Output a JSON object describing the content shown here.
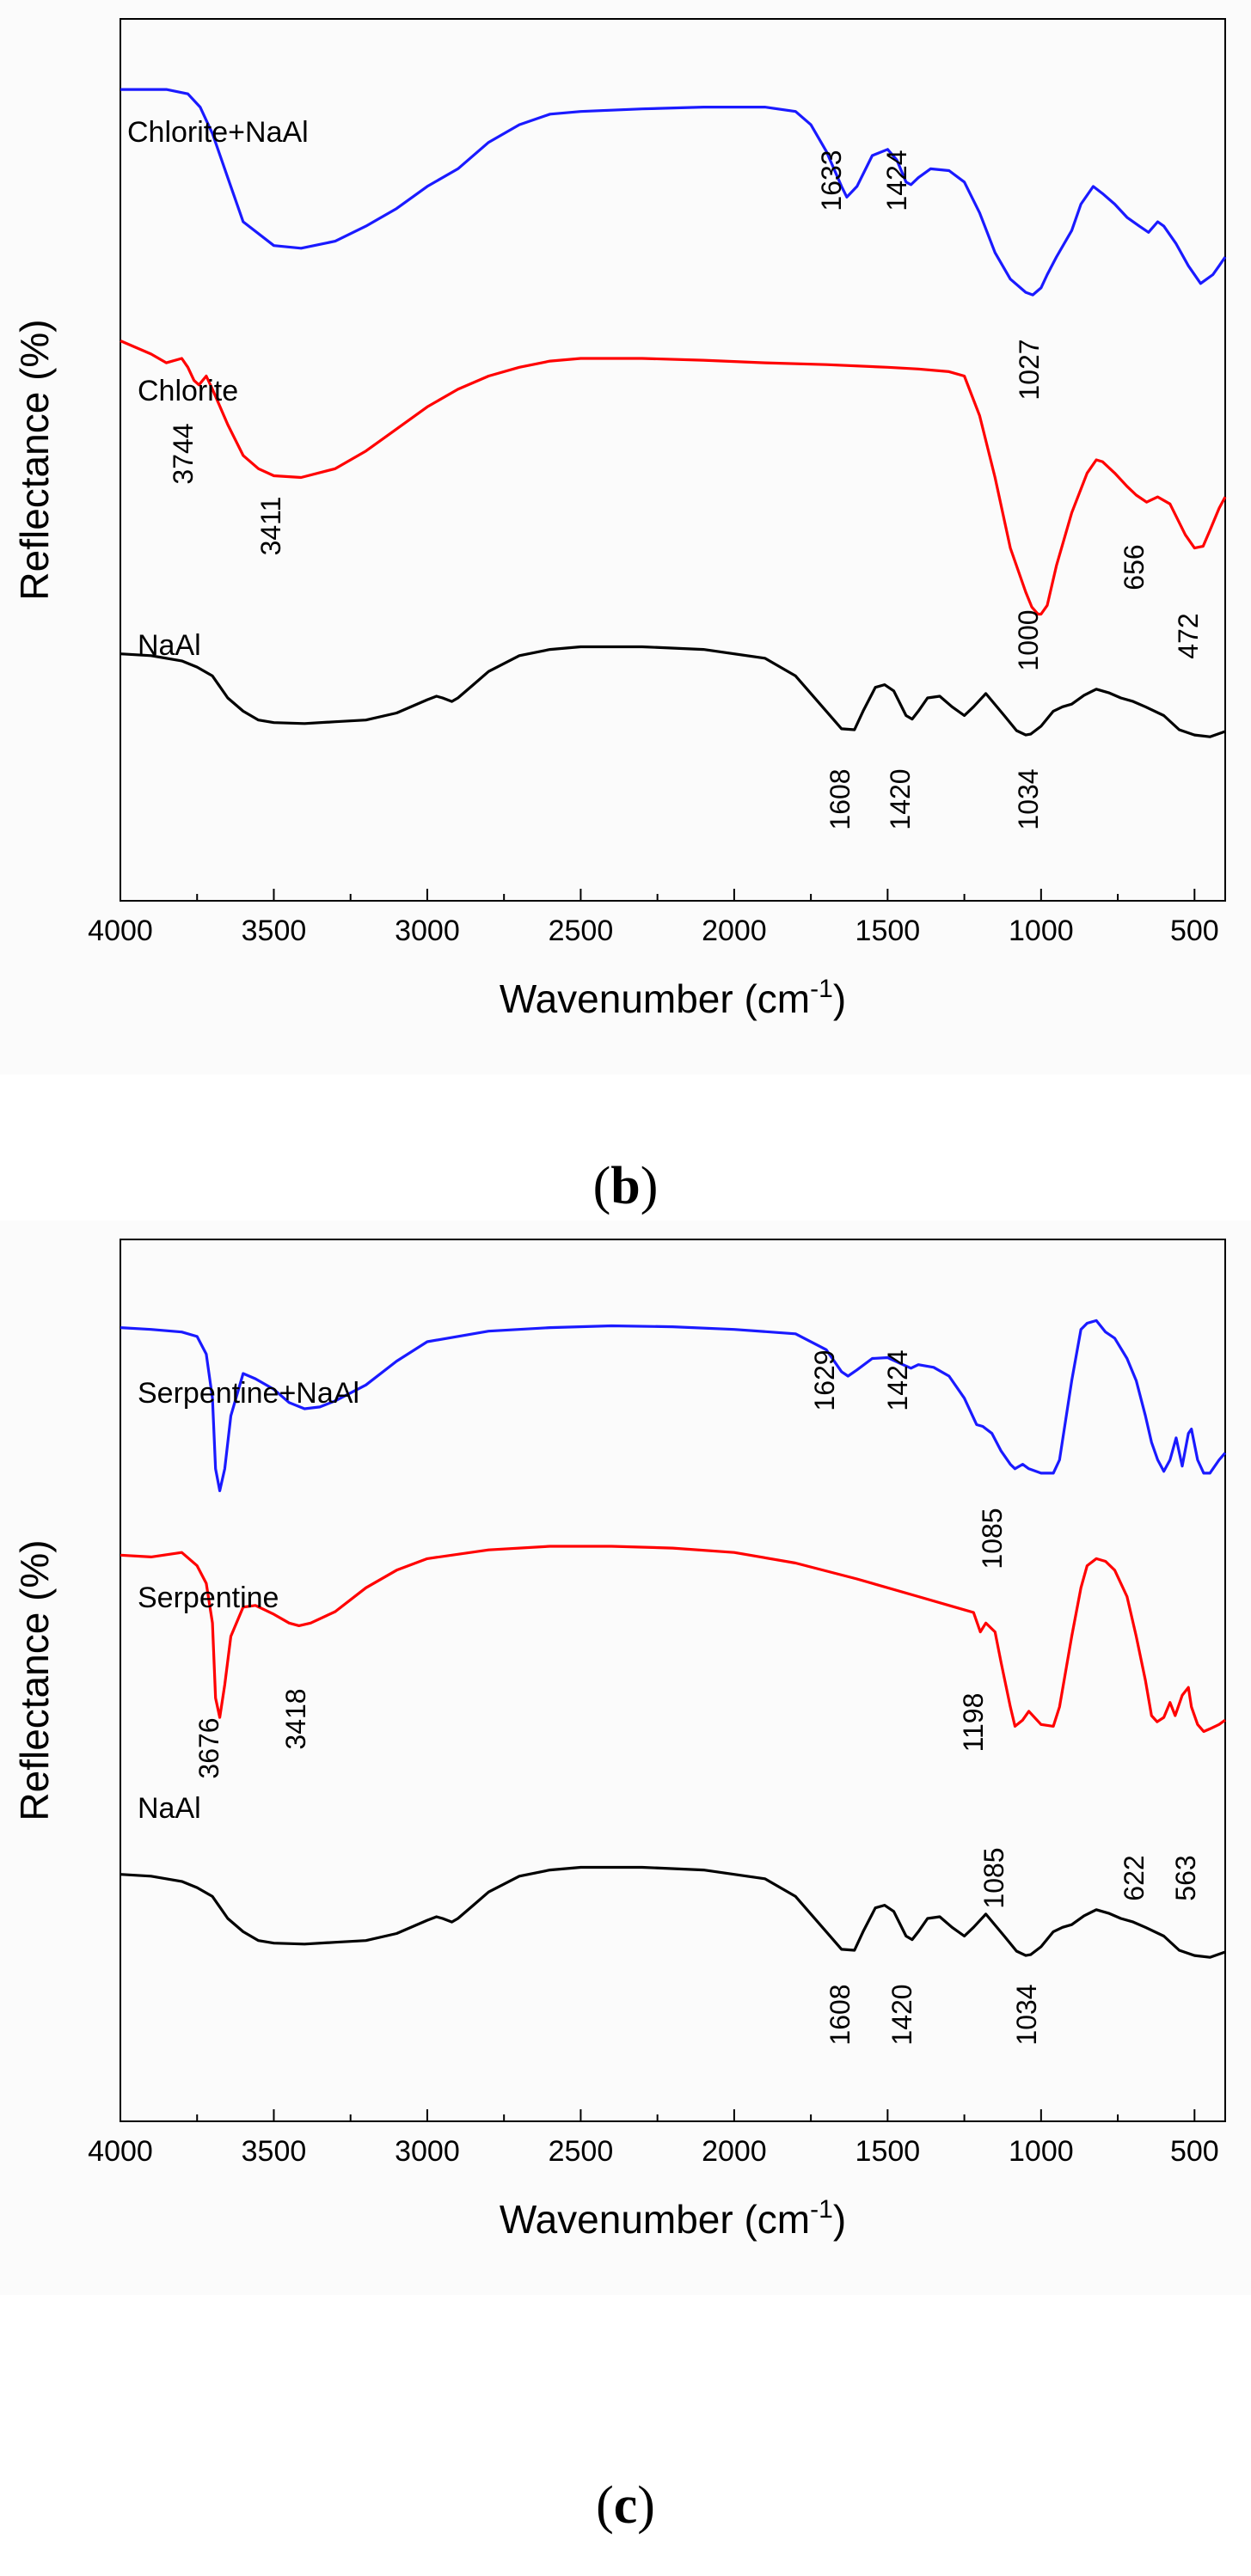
{
  "chart_data": [
    {
      "type": "line",
      "panel": "b",
      "xlabel": "Wavenumber (cm",
      "xlabel_sup": "-1",
      "xlabel_close": ")",
      "ylabel": "Reflectance (%)",
      "xlim": [
        4000,
        400
      ],
      "ylim": [
        0,
        100
      ],
      "x_ticks": [
        4000,
        3500,
        3000,
        2500,
        2000,
        1500,
        1000,
        500
      ],
      "grid": false,
      "series": [
        {
          "name": "Chlorite+NaAl",
          "color": "#1a1aff",
          "x": [
            4000,
            3850,
            3780,
            3740,
            3700,
            3650,
            3600,
            3500,
            3411,
            3300,
            3200,
            3100,
            3000,
            2900,
            2800,
            2700,
            2600,
            2500,
            2300,
            2100,
            1900,
            1800,
            1750,
            1700,
            1650,
            1633,
            1600,
            1550,
            1500,
            1470,
            1440,
            1424,
            1400,
            1360,
            1300,
            1250,
            1200,
            1150,
            1100,
            1050,
            1027,
            1000,
            980,
            950,
            900,
            870,
            830,
            800,
            760,
            720,
            680,
            650,
            620,
            600,
            560,
            520,
            480,
            440,
            420,
            400
          ],
          "y": [
            92,
            92,
            91.5,
            90,
            87,
            82,
            77,
            74.3,
            74,
            74.8,
            76.5,
            78.5,
            81,
            83,
            86,
            88,
            89.2,
            89.5,
            89.8,
            90,
            90,
            89.5,
            88,
            85,
            81,
            79.8,
            81,
            84.5,
            85.2,
            84,
            81.5,
            81.2,
            82,
            83,
            82.8,
            81.5,
            78,
            73.5,
            70.5,
            69,
            68.7,
            69.5,
            71,
            73,
            76,
            79,
            81,
            80.2,
            79,
            77.5,
            76.5,
            75.8,
            77,
            76.5,
            74.5,
            72,
            70,
            71,
            72,
            73
          ]
        },
        {
          "name": "Chlorite",
          "color": "#ff0000",
          "x": [
            4000,
            3900,
            3850,
            3800,
            3780,
            3760,
            3744,
            3720,
            3700,
            3650,
            3600,
            3550,
            3500,
            3411,
            3300,
            3200,
            3100,
            3000,
            2900,
            2800,
            2700,
            2600,
            2500,
            2300,
            2100,
            1900,
            1700,
            1500,
            1400,
            1300,
            1250,
            1200,
            1150,
            1100,
            1050,
            1030,
            1010,
            1000,
            980,
            950,
            900,
            850,
            820,
            800,
            760,
            720,
            690,
            656,
            620,
            580,
            530,
            500,
            472,
            450,
            420,
            400
          ],
          "y": [
            63.5,
            62,
            61,
            61.5,
            60.5,
            59,
            58.5,
            59.5,
            58,
            54,
            50.5,
            49,
            48.2,
            48,
            49,
            51,
            53.5,
            56,
            58,
            59.5,
            60.5,
            61.2,
            61.5,
            61.5,
            61.3,
            61,
            60.8,
            60.5,
            60.3,
            60,
            59.5,
            55,
            48,
            40,
            35,
            33.3,
            32.5,
            32.5,
            33.5,
            38,
            44,
            48.5,
            50,
            49.8,
            48.5,
            47,
            46,
            45.2,
            45.8,
            45,
            41.5,
            40,
            40.2,
            42,
            44.5,
            45.8
          ]
        },
        {
          "name": "NaAl",
          "color": "#000000",
          "x": [
            4000,
            3900,
            3800,
            3750,
            3700,
            3650,
            3600,
            3550,
            3500,
            3400,
            3300,
            3200,
            3100,
            3000,
            2970,
            2950,
            2920,
            2900,
            2850,
            2800,
            2700,
            2600,
            2500,
            2300,
            2100,
            1900,
            1800,
            1700,
            1650,
            1608,
            1580,
            1540,
            1510,
            1480,
            1440,
            1420,
            1400,
            1370,
            1330,
            1290,
            1250,
            1220,
            1180,
            1120,
            1080,
            1050,
            1034,
            1000,
            960,
            930,
            900,
            860,
            820,
            780,
            740,
            700,
            660,
            600,
            550,
            500,
            450,
            400
          ],
          "y": [
            28,
            27.8,
            27.2,
            26.5,
            25.5,
            23,
            21.5,
            20.5,
            20.2,
            20.1,
            20.3,
            20.5,
            21.3,
            22.8,
            23.2,
            23,
            22.6,
            23,
            24.5,
            26,
            27.8,
            28.5,
            28.8,
            28.8,
            28.5,
            27.5,
            25.5,
            21.5,
            19.5,
            19.4,
            21.5,
            24.2,
            24.5,
            23.8,
            21,
            20.6,
            21.5,
            23,
            23.2,
            22,
            21,
            22,
            23.5,
            21,
            19.3,
            18.8,
            18.9,
            19.8,
            21.5,
            22,
            22.3,
            23.3,
            24,
            23.6,
            23,
            22.6,
            22,
            21,
            19.4,
            18.8,
            18.6,
            19.2
          ]
        }
      ],
      "annotations": [
        {
          "text": "1633",
          "wn": 1633,
          "series": "Chlorite+NaAl"
        },
        {
          "text": "1424",
          "wn": 1424,
          "series": "Chlorite+NaAl"
        },
        {
          "text": "1027",
          "wn": 1027,
          "series": "Chlorite+NaAl"
        },
        {
          "text": "3744",
          "wn": 3744,
          "series": "Chlorite"
        },
        {
          "text": "3411",
          "wn": 3411,
          "series": "Chlorite"
        },
        {
          "text": "1000",
          "wn": 1000,
          "series": "Chlorite"
        },
        {
          "text": "656",
          "wn": 656,
          "series": "Chlorite"
        },
        {
          "text": "472",
          "wn": 472,
          "series": "Chlorite"
        },
        {
          "text": "1608",
          "wn": 1608,
          "series": "NaAl"
        },
        {
          "text": "1420",
          "wn": 1420,
          "series": "NaAl"
        },
        {
          "text": "1034",
          "wn": 1034,
          "series": "NaAl"
        }
      ]
    },
    {
      "type": "line",
      "panel": "c",
      "xlabel": "Wavenumber (cm",
      "xlabel_sup": "-1",
      "xlabel_close": ")",
      "ylabel": "Reflectance (%)",
      "xlim": [
        4000,
        400
      ],
      "ylim": [
        0,
        100
      ],
      "x_ticks": [
        4000,
        3500,
        3000,
        2500,
        2000,
        1500,
        1000,
        500
      ],
      "grid": false,
      "series": [
        {
          "name": "Serpentine+NaAl",
          "color": "#1a1aff",
          "x": [
            4000,
            3900,
            3800,
            3750,
            3720,
            3700,
            3690,
            3676,
            3660,
            3640,
            3600,
            3560,
            3500,
            3450,
            3400,
            3350,
            3300,
            3200,
            3100,
            3000,
            2800,
            2600,
            2400,
            2200,
            2000,
            1800,
            1700,
            1650,
            1629,
            1600,
            1550,
            1500,
            1450,
            1424,
            1400,
            1350,
            1300,
            1250,
            1210,
            1190,
            1160,
            1130,
            1100,
            1085,
            1060,
            1040,
            1000,
            960,
            940,
            900,
            870,
            850,
            820,
            790,
            760,
            720,
            690,
            660,
            640,
            620,
            600,
            580,
            560,
            540,
            520,
            510,
            490,
            470,
            450,
            420,
            400
          ],
          "y": [
            90,
            89.8,
            89.5,
            89,
            87,
            82,
            74,
            71.5,
            74,
            80,
            84.8,
            84.2,
            83,
            81.5,
            80.8,
            81,
            81.7,
            83.5,
            86.2,
            88.4,
            89.6,
            90,
            90.2,
            90.1,
            89.8,
            89.3,
            87.5,
            85,
            84.5,
            85.2,
            86.5,
            86.6,
            85.8,
            85.4,
            85.8,
            85.5,
            84.5,
            82,
            79,
            78.8,
            78,
            76,
            74.5,
            74,
            74.5,
            74,
            73.5,
            73.5,
            75,
            84,
            89.8,
            90.5,
            90.8,
            89.5,
            88.8,
            86.5,
            84,
            80,
            77,
            75,
            73.7,
            75,
            77.5,
            74.3,
            78,
            78.5,
            75,
            73.5,
            73.5,
            75,
            75.8
          ]
        },
        {
          "name": "Serpentine",
          "color": "#ff0000",
          "x": [
            4000,
            3900,
            3800,
            3750,
            3720,
            3700,
            3690,
            3676,
            3660,
            3640,
            3600,
            3560,
            3500,
            3450,
            3418,
            3380,
            3300,
            3200,
            3100,
            3000,
            2800,
            2600,
            2400,
            2200,
            2000,
            1800,
            1600,
            1400,
            1300,
            1250,
            1220,
            1198,
            1180,
            1150,
            1130,
            1100,
            1085,
            1060,
            1040,
            1000,
            960,
            940,
            900,
            870,
            850,
            820,
            790,
            760,
            720,
            690,
            660,
            640,
            622,
            600,
            580,
            563,
            540,
            520,
            510,
            490,
            470,
            450,
            420,
            400
          ],
          "y": [
            64.2,
            64,
            64.5,
            63,
            61,
            56.5,
            48,
            45.8,
            49.5,
            55,
            58.3,
            58.5,
            57.5,
            56.5,
            56.2,
            56.5,
            57.8,
            60.5,
            62.5,
            63.8,
            64.8,
            65.2,
            65.2,
            65,
            64.5,
            63.3,
            61.5,
            59.5,
            58.5,
            58,
            57.7,
            55.5,
            56.5,
            55.5,
            52,
            47,
            44.8,
            45.5,
            46.5,
            45,
            44.8,
            47,
            55,
            60.5,
            63,
            63.8,
            63.5,
            62.5,
            59.5,
            55,
            50,
            46,
            45.3,
            45.8,
            47.5,
            46,
            48.3,
            49.2,
            47,
            45,
            44.2,
            44.5,
            45,
            45.5
          ]
        },
        {
          "name": "NaAl",
          "color": "#000000",
          "x": [
            4000,
            3900,
            3800,
            3750,
            3700,
            3650,
            3600,
            3550,
            3500,
            3400,
            3300,
            3200,
            3100,
            3000,
            2970,
            2950,
            2920,
            2900,
            2850,
            2800,
            2700,
            2600,
            2500,
            2300,
            2100,
            1900,
            1800,
            1700,
            1650,
            1608,
            1580,
            1540,
            1510,
            1480,
            1440,
            1420,
            1400,
            1370,
            1330,
            1290,
            1250,
            1220,
            1180,
            1120,
            1080,
            1050,
            1034,
            1000,
            960,
            930,
            900,
            860,
            820,
            780,
            740,
            700,
            660,
            600,
            550,
            500,
            450,
            400
          ],
          "y": [
            28,
            27.8,
            27.2,
            26.5,
            25.5,
            23,
            21.5,
            20.5,
            20.2,
            20.1,
            20.3,
            20.5,
            21.3,
            22.8,
            23.2,
            23,
            22.6,
            23,
            24.5,
            26,
            27.8,
            28.5,
            28.8,
            28.8,
            28.5,
            27.5,
            25.5,
            21.5,
            19.5,
            19.4,
            21.5,
            24.2,
            24.5,
            23.8,
            21,
            20.6,
            21.5,
            23,
            23.2,
            22,
            21,
            22,
            23.5,
            21,
            19.3,
            18.8,
            18.9,
            19.8,
            21.5,
            22,
            22.3,
            23.3,
            24,
            23.6,
            23,
            22.6,
            22,
            21,
            19.4,
            18.8,
            18.6,
            19.2
          ]
        }
      ],
      "annotations": [
        {
          "text": "1629",
          "wn": 1629,
          "series": "Serpentine+NaAl"
        },
        {
          "text": "1424",
          "wn": 1424,
          "series": "Serpentine+NaAl"
        },
        {
          "text": "1085",
          "wn": 1085,
          "series": "Serpentine+NaAl"
        },
        {
          "text": "3676",
          "wn": 3676,
          "series": "Serpentine"
        },
        {
          "text": "3418",
          "wn": 3418,
          "series": "Serpentine"
        },
        {
          "text": "1198",
          "wn": 1198,
          "series": "Serpentine"
        },
        {
          "text": "1085",
          "wn": 1085,
          "series": "Serpentine"
        },
        {
          "text": "622",
          "wn": 622,
          "series": "Serpentine"
        },
        {
          "text": "563",
          "wn": 563,
          "series": "Serpentine"
        },
        {
          "text": "1608",
          "wn": 1608,
          "series": "NaAl"
        },
        {
          "text": "1420",
          "wn": 1420,
          "series": "NaAl"
        },
        {
          "text": "1034",
          "wn": 1034,
          "series": "NaAl"
        }
      ]
    }
  ],
  "panel_labels": {
    "b": "b",
    "c": "c",
    "open": "(",
    "close": ")"
  }
}
